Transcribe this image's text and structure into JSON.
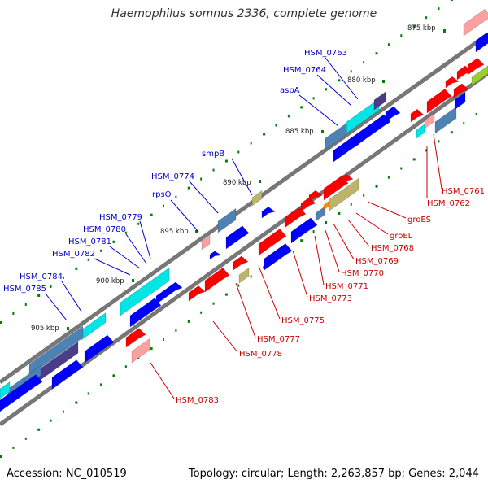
{
  "title": "Haemophilus somnus 2336, complete genome",
  "accession": "Accession: NC_010519",
  "summary": "Topology: circular; Length: 2,263,857 bp; Genes: 2,044",
  "colors": {
    "forward_label": "#0000cc",
    "reverse_label": "#cc0000",
    "cds": "#0000ff",
    "trna": "#ff0000",
    "highlight": "#00e5e5",
    "steel": "#4f82b4",
    "pink": "#ffa0a0",
    "khaki": "#bdb46b",
    "purple": "#4b3c8a",
    "gc_tick": "#008000",
    "backbone": "#777777"
  },
  "ruler": [
    {
      "label": "875 kbp"
    },
    {
      "label": "880 kbp"
    },
    {
      "label": "885 kbp"
    },
    {
      "label": "890 kbp"
    },
    {
      "label": "895 kbp"
    },
    {
      "label": "900 kbp"
    },
    {
      "label": "905 kbp"
    }
  ],
  "forward_genes": [
    {
      "label": "HSM_0763"
    },
    {
      "label": "HSM_0764"
    },
    {
      "label": "aspA"
    },
    {
      "label": "smpB"
    },
    {
      "label": "HSM_0774"
    },
    {
      "label": "rpsO"
    },
    {
      "label": "HSM_0779"
    },
    {
      "label": "HSM_0780"
    },
    {
      "label": "HSM_0781"
    },
    {
      "label": "HSM_0782"
    },
    {
      "label": "HSM_0784"
    },
    {
      "label": "HSM_0785"
    }
  ],
  "reverse_genes": [
    {
      "label": "HSM_0761"
    },
    {
      "label": "HSM_0762"
    },
    {
      "label": "groES"
    },
    {
      "label": "groEL"
    },
    {
      "label": "HSM_0768"
    },
    {
      "label": "HSM_0769"
    },
    {
      "label": "HSM_0770"
    },
    {
      "label": "HSM_0771"
    },
    {
      "label": "HSM_0773"
    },
    {
      "label": "HSM_0775"
    },
    {
      "label": "HSM_0777"
    },
    {
      "label": "HSM_0778"
    },
    {
      "label": "HSM_0783"
    }
  ]
}
